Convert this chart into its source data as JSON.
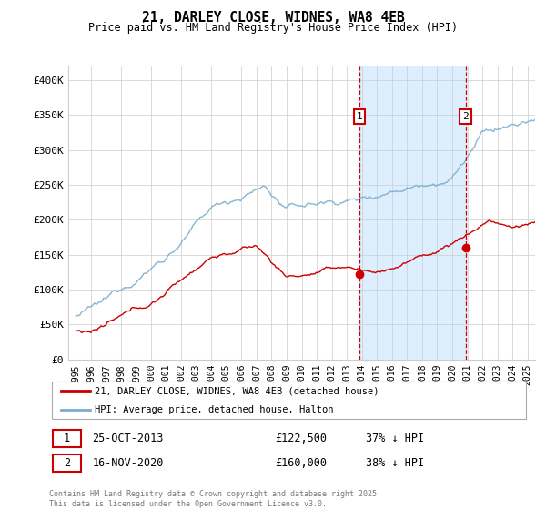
{
  "title": "21, DARLEY CLOSE, WIDNES, WA8 4EB",
  "subtitle": "Price paid vs. HM Land Registry's House Price Index (HPI)",
  "ylim": [
    0,
    420000
  ],
  "xlim_start": 1994.5,
  "xlim_end": 2025.5,
  "yticks": [
    0,
    50000,
    100000,
    150000,
    200000,
    250000,
    300000,
    350000,
    400000
  ],
  "ytick_labels": [
    "£0",
    "£50K",
    "£100K",
    "£150K",
    "£200K",
    "£250K",
    "£300K",
    "£350K",
    "£400K"
  ],
  "xticks": [
    1995,
    1996,
    1997,
    1998,
    1999,
    2000,
    2001,
    2002,
    2003,
    2004,
    2005,
    2006,
    2007,
    2008,
    2009,
    2010,
    2011,
    2012,
    2013,
    2014,
    2015,
    2016,
    2017,
    2018,
    2019,
    2020,
    2021,
    2022,
    2023,
    2024,
    2025
  ],
  "sale1_x": 2013.82,
  "sale1_y": 122500,
  "sale1_label": "1",
  "sale1_date": "25-OCT-2013",
  "sale1_price": "£122,500",
  "sale1_hpi": "37% ↓ HPI",
  "sale2_x": 2020.88,
  "sale2_y": 160000,
  "sale2_label": "2",
  "sale2_date": "16-NOV-2020",
  "sale2_price": "£160,000",
  "sale2_hpi": "38% ↓ HPI",
  "red_line_color": "#cc0000",
  "blue_line_color": "#7aadce",
  "marker_box_color": "#cc0000",
  "dashed_line_color": "#cc0000",
  "background_color": "#ffffff",
  "plot_bg_color": "#ffffff",
  "shaded_color": "#ddeeff",
  "grid_color": "#cccccc",
  "legend_line1": "21, DARLEY CLOSE, WIDNES, WA8 4EB (detached house)",
  "legend_line2": "HPI: Average price, detached house, Halton",
  "footer": "Contains HM Land Registry data © Crown copyright and database right 2025.\nThis data is licensed under the Open Government Licence v3.0."
}
